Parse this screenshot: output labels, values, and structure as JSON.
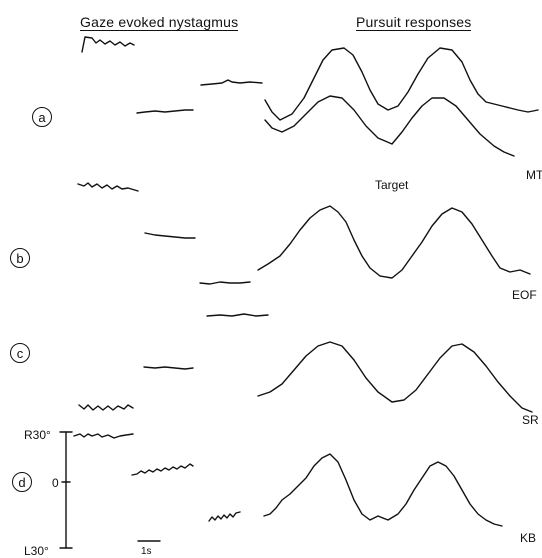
{
  "headers": {
    "gaze": "Gaze evoked nystagmus",
    "pursuit": "Pursuit responses"
  },
  "rows": [
    {
      "id": "a",
      "subject": "MT",
      "extra_label": "Target"
    },
    {
      "id": "b",
      "subject": "EOF"
    },
    {
      "id": "c",
      "subject": "SR"
    },
    {
      "id": "d",
      "subject": "KB"
    }
  ],
  "scale": {
    "top": "R30°",
    "mid": "0",
    "bottom": "L30°",
    "time": "1s"
  }
}
